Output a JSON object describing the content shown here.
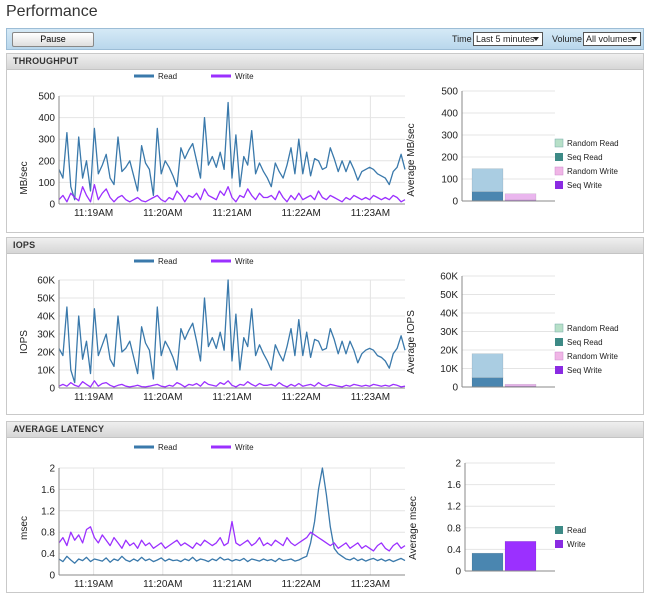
{
  "page": {
    "title": "Performance"
  },
  "toolbar": {
    "pause_label": "Pause",
    "time_label": "Time",
    "time_value": "Last 5 minutes",
    "volume_label": "Volume",
    "volume_value": "All volumes"
  },
  "colors": {
    "read": "#4a86b0",
    "write": "#9b30ff",
    "random_read": "#a8cfe2",
    "seq_read": "#3d7d9a",
    "random_write": "#e4a4e4",
    "seq_write": "#8a2be2"
  },
  "line_legend": [
    {
      "label": "Read",
      "color": "#3a79ab"
    },
    {
      "label": "Write",
      "color": "#9b30ff"
    }
  ],
  "panels": {
    "throughput": {
      "title": "THROUGHPUT",
      "line_ylabel": "MB/sec",
      "bar_ylabel": "Average MB/sec",
      "legend": [
        {
          "label": "Random Read",
          "color": "#b7e0c8"
        },
        {
          "label": "Seq Read",
          "color": "#3d8a86"
        },
        {
          "label": "Random Write",
          "color": "#f0b6e6"
        },
        {
          "label": "Seq Write",
          "color": "#8a2be2"
        }
      ]
    },
    "iops": {
      "title": "IOPS",
      "line_ylabel": "IOPS",
      "bar_ylabel": "Average IOPS",
      "legend": [
        {
          "label": "Random Read",
          "color": "#b7e0c8"
        },
        {
          "label": "Seq Read",
          "color": "#3d8a86"
        },
        {
          "label": "Random Write",
          "color": "#f0b6e6"
        },
        {
          "label": "Seq Write",
          "color": "#8a2be2"
        }
      ]
    },
    "latency": {
      "title": "AVERAGE LATENCY",
      "line_ylabel": "msec",
      "bar_ylabel": "Average msec",
      "legend": [
        {
          "label": "Read",
          "color": "#3d8a86"
        },
        {
          "label": "Write",
          "color": "#8a2be2"
        }
      ]
    }
  },
  "chart_data": [
    {
      "type": "line",
      "id": "throughput_line",
      "ylabel": "MB/sec",
      "ylim": [
        0,
        500
      ],
      "y_ticks": [
        0,
        100,
        200,
        300,
        400,
        500
      ],
      "y_tick_labels": [
        "0",
        "100",
        "200",
        "300",
        "400",
        "500"
      ],
      "x_tick_labels": [
        "11:19AM",
        "11:20AM",
        "11:21AM",
        "11:22AM",
        "11:23AM"
      ],
      "series": [
        {
          "name": "Read",
          "color": "#3a79ab",
          "values": [
            160,
            120,
            330,
            80,
            20,
            310,
            120,
            200,
            60,
            350,
            140,
            180,
            230,
            120,
            90,
            310,
            150,
            170,
            200,
            130,
            60,
            270,
            190,
            160,
            40,
            350,
            140,
            200,
            170,
            130,
            80,
            260,
            210,
            250,
            280,
            200,
            120,
            400,
            180,
            220,
            170,
            240,
            160,
            470,
            120,
            320,
            80,
            220,
            180,
            340,
            140,
            190,
            150,
            120,
            80,
            190,
            150,
            120,
            180,
            260,
            140,
            300,
            140,
            240,
            130,
            210,
            200,
            160,
            170,
            260,
            210,
            150,
            200,
            150,
            200,
            160,
            110,
            150,
            160,
            170,
            160,
            140,
            130,
            120,
            90,
            150,
            170,
            230,
            160
          ]
        },
        {
          "name": "Write",
          "color": "#9b30ff",
          "values": [
            20,
            40,
            10,
            50,
            30,
            15,
            80,
            40,
            10,
            90,
            20,
            50,
            70,
            30,
            10,
            30,
            40,
            20,
            10,
            20,
            30,
            15,
            10,
            20,
            30,
            40,
            20,
            10,
            30,
            20,
            60,
            40,
            10,
            40,
            30,
            50,
            20,
            70,
            40,
            30,
            20,
            60,
            40,
            80,
            30,
            10,
            40,
            30,
            70,
            40,
            20,
            50,
            30,
            30,
            40,
            20,
            60,
            30,
            10,
            40,
            20,
            50,
            20,
            30,
            40,
            20,
            60,
            30,
            20,
            40,
            30,
            20,
            10,
            30,
            20,
            40,
            30,
            20,
            30,
            20,
            40,
            30,
            20,
            30,
            20,
            40,
            30,
            10,
            20
          ]
        }
      ]
    },
    {
      "type": "bar",
      "id": "throughput_avg",
      "ylabel": "Average MB/sec",
      "ylim": [
        0,
        500
      ],
      "y_ticks": [
        0,
        100,
        200,
        300,
        400,
        500
      ],
      "y_tick_labels": [
        "0",
        "100",
        "200",
        "300",
        "400",
        "500"
      ],
      "stacks": [
        {
          "segments": [
            {
              "series": "Seq Read",
              "value": 42,
              "color": "#4a86b0"
            },
            {
              "series": "Random Read",
              "value": 105,
              "color": "#aacde2"
            }
          ]
        },
        {
          "segments": [
            {
              "series": "Seq Write",
              "value": 5,
              "color": "#c98ce9"
            },
            {
              "series": "Random Write",
              "value": 28,
              "color": "#eab6ee"
            }
          ]
        }
      ]
    },
    {
      "type": "line",
      "id": "iops_line",
      "ylabel": "IOPS",
      "ylim": [
        0,
        60000
      ],
      "y_ticks": [
        0,
        10000,
        20000,
        30000,
        40000,
        50000,
        60000
      ],
      "y_tick_labels": [
        "0",
        "10K",
        "20K",
        "30K",
        "40K",
        "50K",
        "60K"
      ],
      "x_tick_labels": [
        "11:19AM",
        "11:20AM",
        "11:21AM",
        "11:22AM",
        "11:23AM"
      ],
      "series": [
        {
          "name": "Read",
          "color": "#3a79ab",
          "values": [
            22000,
            18000,
            45000,
            10000,
            3000,
            40000,
            16000,
            26000,
            8000,
            44000,
            18000,
            24000,
            30000,
            16000,
            12000,
            40000,
            20000,
            22000,
            26000,
            17000,
            8000,
            34000,
            25000,
            21000,
            5000,
            45000,
            18000,
            26000,
            22000,
            17000,
            10000,
            33000,
            27000,
            32000,
            36000,
            26000,
            15000,
            50000,
            23000,
            28000,
            22000,
            31000,
            21000,
            60000,
            15000,
            41000,
            10000,
            28000,
            23000,
            44000,
            18000,
            24000,
            19000,
            15000,
            10000,
            24000,
            19000,
            15000,
            23000,
            33000,
            18000,
            38000,
            18000,
            31000,
            17000,
            27000,
            26000,
            21000,
            22000,
            33000,
            27000,
            19000,
            26000,
            19000,
            26000,
            21000,
            14000,
            19000,
            21000,
            22000,
            21000,
            18000,
            17000,
            15000,
            11000,
            19000,
            22000,
            29000,
            21000
          ]
        },
        {
          "name": "Write",
          "color": "#9b30ff",
          "values": [
            1000,
            2000,
            1000,
            3000,
            1500,
            800,
            3500,
            2000,
            600,
            4000,
            1000,
            2500,
            3000,
            1500,
            600,
            1500,
            2000,
            1000,
            600,
            1000,
            1500,
            800,
            600,
            1000,
            1500,
            2000,
            1000,
            600,
            1500,
            1000,
            3000,
            2000,
            600,
            2000,
            1500,
            2500,
            1000,
            3500,
            2000,
            1500,
            1000,
            3000,
            2000,
            4000,
            1500,
            600,
            2000,
            1500,
            3500,
            2000,
            1000,
            2500,
            1500,
            1500,
            2000,
            1000,
            3000,
            1500,
            600,
            2000,
            1000,
            2500,
            1000,
            1500,
            2000,
            1000,
            3000,
            1500,
            1000,
            2000,
            1500,
            1000,
            600,
            1500,
            1000,
            2000,
            1500,
            1000,
            1500,
            1000,
            2000,
            1500,
            1000,
            1500,
            1000,
            2000,
            1500,
            600,
            1000
          ]
        }
      ]
    },
    {
      "type": "bar",
      "id": "iops_avg",
      "ylabel": "Average IOPS",
      "ylim": [
        0,
        60000
      ],
      "y_ticks": [
        0,
        10000,
        20000,
        30000,
        40000,
        50000,
        60000
      ],
      "y_tick_labels": [
        "0",
        "10K",
        "20K",
        "30K",
        "40K",
        "50K",
        "60K"
      ],
      "stacks": [
        {
          "segments": [
            {
              "series": "Seq Read",
              "value": 5000,
              "color": "#4a86b0"
            },
            {
              "series": "Random Read",
              "value": 13000,
              "color": "#aacde2"
            }
          ]
        },
        {
          "segments": [
            {
              "series": "Seq Write",
              "value": 500,
              "color": "#c98ce9"
            },
            {
              "series": "Random Write",
              "value": 1000,
              "color": "#eab6ee"
            }
          ]
        }
      ]
    },
    {
      "type": "line",
      "id": "latency_line",
      "ylabel": "msec",
      "ylim": [
        0,
        2
      ],
      "y_ticks": [
        0,
        0.4,
        0.8,
        1.2,
        1.6,
        2
      ],
      "y_tick_labels": [
        "0",
        "0.4",
        "0.8",
        "1.2",
        "1.6",
        "2"
      ],
      "x_tick_labels": [
        "11:19AM",
        "11:20AM",
        "11:21AM",
        "11:22AM",
        "11:23AM"
      ],
      "series": [
        {
          "name": "Read",
          "color": "#3a79ab",
          "values": [
            0.3,
            0.25,
            0.35,
            0.28,
            0.22,
            0.3,
            0.27,
            0.33,
            0.25,
            0.3,
            0.28,
            0.26,
            0.32,
            0.24,
            0.3,
            0.27,
            0.35,
            0.28,
            0.25,
            0.3,
            0.26,
            0.33,
            0.27,
            0.3,
            0.25,
            0.28,
            0.32,
            0.26,
            0.3,
            0.27,
            0.28,
            0.25,
            0.3,
            0.27,
            0.33,
            0.26,
            0.3,
            0.28,
            0.25,
            0.3,
            0.27,
            0.33,
            0.28,
            0.3,
            0.26,
            0.29,
            0.27,
            0.31,
            0.25,
            0.3,
            0.28,
            0.26,
            0.3,
            0.27,
            0.29,
            0.25,
            0.31,
            0.27,
            0.28,
            0.3,
            0.26,
            0.28,
            0.32,
            0.35,
            0.6,
            1.0,
            1.6,
            2.0,
            1.5,
            0.9,
            0.5,
            0.4,
            0.35,
            0.3,
            0.28,
            0.32,
            0.27,
            0.3,
            0.26,
            0.29,
            0.31,
            0.27,
            0.3,
            0.26,
            0.29,
            0.25,
            0.28,
            0.31,
            0.27
          ]
        },
        {
          "name": "Write",
          "color": "#9b30ff",
          "values": [
            0.6,
            0.7,
            0.55,
            0.8,
            0.65,
            0.75,
            0.6,
            0.85,
            0.9,
            0.7,
            0.6,
            0.75,
            0.65,
            0.55,
            0.7,
            0.6,
            0.5,
            0.65,
            0.55,
            0.6,
            0.5,
            0.65,
            0.55,
            0.6,
            0.5,
            0.55,
            0.6,
            0.5,
            0.55,
            0.6,
            0.65,
            0.55,
            0.6,
            0.55,
            0.5,
            0.6,
            0.55,
            0.65,
            0.6,
            0.55,
            0.6,
            0.7,
            0.55,
            0.6,
            1.0,
            0.6,
            0.55,
            0.6,
            0.65,
            0.55,
            0.6,
            0.7,
            0.55,
            0.6,
            0.55,
            0.65,
            0.6,
            0.55,
            0.7,
            0.6,
            0.55,
            0.6,
            0.65,
            0.7,
            0.8,
            0.75,
            0.7,
            0.65,
            0.6,
            0.55,
            0.6,
            0.5,
            0.55,
            0.6,
            0.5,
            0.55,
            0.6,
            0.5,
            0.55,
            0.5,
            0.45,
            0.55,
            0.6,
            0.5,
            0.45,
            0.55,
            0.6,
            0.5,
            0.55
          ]
        }
      ]
    },
    {
      "type": "bar",
      "id": "latency_avg",
      "ylabel": "Average msec",
      "ylim": [
        0,
        2
      ],
      "y_ticks": [
        0,
        0.4,
        0.8,
        1.2,
        1.6,
        2
      ],
      "y_tick_labels": [
        "0",
        "0.4",
        "0.8",
        "1.2",
        "1.6",
        "2"
      ],
      "stacks": [
        {
          "segments": [
            {
              "series": "Read",
              "value": 0.33,
              "color": "#4a86b0"
            }
          ]
        },
        {
          "segments": [
            {
              "series": "Write",
              "value": 0.55,
              "color": "#9b30ff"
            }
          ]
        }
      ]
    }
  ]
}
